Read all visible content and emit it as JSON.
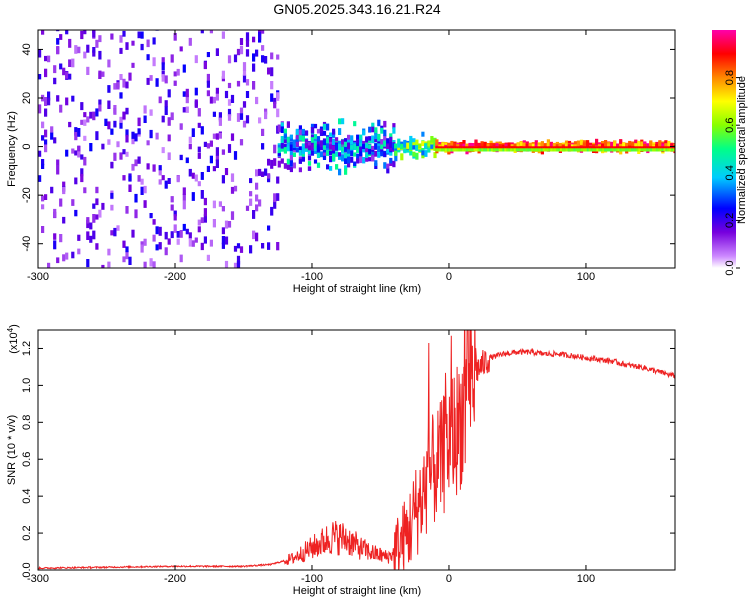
{
  "figure_title": "GN05.2025.343.16.21.R24",
  "colors": {
    "snr_line": "#ee2222",
    "ridge": "#dd1111"
  },
  "colorbar": {
    "label": "Normalized spectral amplitude",
    "ticks": [
      "0.0",
      "0.2",
      "0.4",
      "0.6",
      "0.8"
    ],
    "tick_values": [
      0.0,
      0.2,
      0.4,
      0.6,
      0.8
    ],
    "range": [
      0,
      1
    ]
  },
  "chart_data": [
    {
      "type": "heatmap",
      "title": "",
      "xlabel": "Height of straight line (km)",
      "ylabel": "Frequency (Hz)",
      "xlim": [
        -300,
        165
      ],
      "ylim": [
        -50,
        48
      ],
      "xticks": [
        "-300",
        "-200",
        "-100",
        "0",
        "100"
      ],
      "xtick_values": [
        -300,
        -200,
        -100,
        0,
        100
      ],
      "yticks": [
        "-40",
        "-20",
        "0",
        "20",
        "40"
      ],
      "ytick_values": [
        -40,
        -20,
        0,
        20,
        40
      ],
      "description_regions": [
        {
          "x_range": [
            -300,
            -125
          ],
          "freq_spread": 50,
          "amplitude": [
            0.05,
            0.25
          ]
        },
        {
          "x_range": [
            -125,
            -40
          ],
          "freq_spread": 12,
          "amplitude": [
            0.1,
            0.5
          ]
        },
        {
          "x_range": [
            -40,
            -10
          ],
          "freq_spread": 6,
          "amplitude": [
            0.3,
            0.7
          ]
        },
        {
          "x_range": [
            -10,
            165
          ],
          "freq_spread": 2,
          "amplitude": [
            0.7,
            1.0
          ]
        }
      ]
    },
    {
      "type": "line",
      "title": "",
      "xlabel": "Height of straight line (km)",
      "ylabel": "SNR (10 * v/v)",
      "y_multiplier": "(x10",
      "y_multiplier_exp": "4",
      "xlim": [
        -300,
        165
      ],
      "ylim": [
        0,
        1.3
      ],
      "xticks": [
        "-300",
        "-200",
        "-100",
        "0",
        "100"
      ],
      "xtick_values": [
        -300,
        -200,
        -100,
        0,
        100
      ],
      "yticks": [
        "0.0",
        "0.2",
        "0.4",
        "0.6",
        "0.8",
        "1.0",
        "1.2"
      ],
      "ytick_values": [
        0.0,
        0.2,
        0.4,
        0.6,
        0.8,
        1.0,
        1.2
      ],
      "series": [
        {
          "name": "SNR",
          "x": [
            -300,
            -250,
            -200,
            -150,
            -130,
            -115,
            -105,
            -95,
            -85,
            -75,
            -65,
            -55,
            -45,
            -38,
            -30,
            -25,
            -20,
            -15,
            -10,
            -5,
            0,
            5,
            10,
            15,
            20,
            30,
            40,
            50,
            60,
            70,
            80,
            90,
            100,
            110,
            120,
            130,
            140,
            150,
            160,
            165
          ],
          "y": [
            0.01,
            0.015,
            0.02,
            0.02,
            0.03,
            0.06,
            0.1,
            0.14,
            0.18,
            0.17,
            0.12,
            0.09,
            0.07,
            0.1,
            0.2,
            0.3,
            0.4,
            0.5,
            0.55,
            0.6,
            0.7,
            0.75,
            0.85,
            0.98,
            1.08,
            1.15,
            1.17,
            1.18,
            1.18,
            1.17,
            1.17,
            1.16,
            1.15,
            1.14,
            1.13,
            1.11,
            1.1,
            1.08,
            1.06,
            1.05
          ]
        }
      ]
    }
  ]
}
